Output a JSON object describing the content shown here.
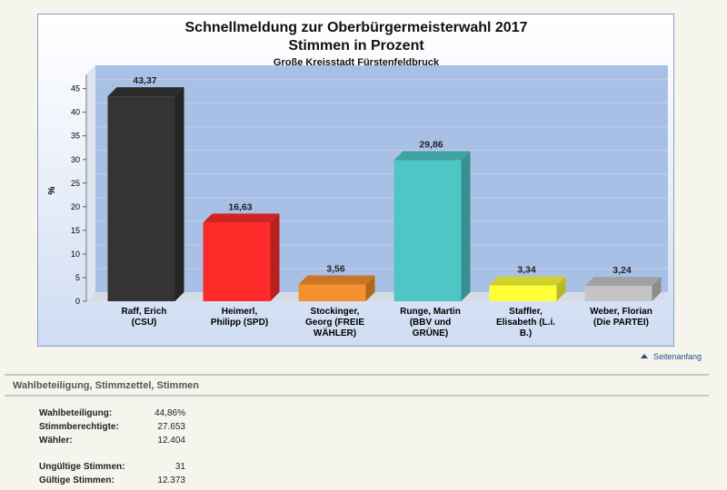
{
  "chart_data": {
    "type": "bar",
    "title": "Schnellmeldung zur Oberbürgermeisterwahl 2017",
    "title_line2": "Stimmen in Prozent",
    "subtitle": "Große Kreisstadt Fürstenfeldbruck",
    "ylabel": "%",
    "ylim": [
      0,
      48
    ],
    "yticks": [
      0,
      5,
      10,
      15,
      20,
      25,
      30,
      35,
      40,
      45
    ],
    "grid": true,
    "categories": [
      [
        "Raff, Erich",
        "(CSU)"
      ],
      [
        "Heimerl,",
        "Philipp (SPD)"
      ],
      [
        "Stockinger,",
        "Georg (FREIE",
        "WÄHLER)"
      ],
      [
        "Runge, Martin",
        "(BBV und",
        "GRÜNE)"
      ],
      [
        "Staffler,",
        "Elisabeth (L.i.",
        "B.)"
      ],
      [
        "Weber, Florian",
        "(Die PARTEI)"
      ]
    ],
    "values": [
      43.37,
      16.63,
      3.56,
      29.86,
      3.34,
      3.24
    ],
    "value_labels": [
      "43,37",
      "16,63",
      "3,56",
      "29,86",
      "3,34",
      "3,24"
    ],
    "colors": [
      "#343434",
      "#ff2b2b",
      "#f5902e",
      "#4ec6c6",
      "#ffff38",
      "#c4c4c4"
    ]
  },
  "nav": {
    "top_link": "Seitenanfang"
  },
  "section": {
    "title": "Wahlbeteiligung, Stimmzettel, Stimmen",
    "stats": [
      {
        "label": "Wahlbeteiligung:",
        "value": "44,86%"
      },
      {
        "label": "Stimmberechtigte:",
        "value": "27.653"
      },
      {
        "label": "Wähler:",
        "value": "12.404"
      },
      {
        "label": "Ungültige Stimmen:",
        "value": "31"
      },
      {
        "label": "Gültige Stimmen:",
        "value": "12.373"
      }
    ]
  }
}
